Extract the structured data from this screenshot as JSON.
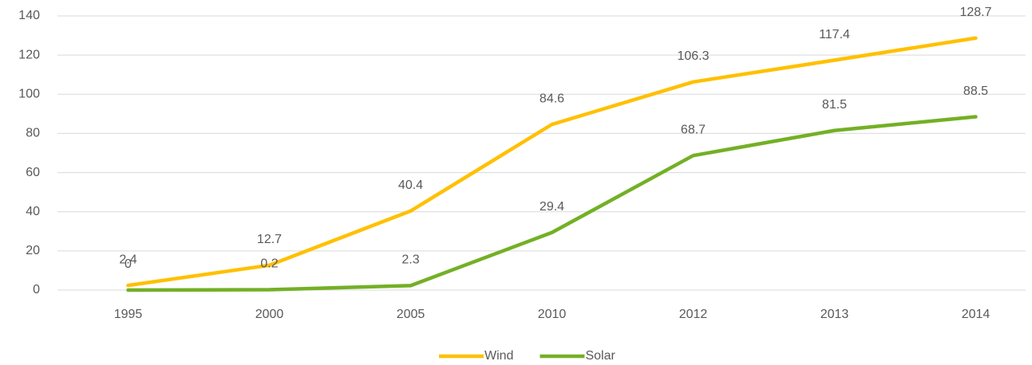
{
  "chart_data": {
    "type": "line",
    "categories": [
      "1995",
      "2000",
      "2005",
      "2010",
      "2012",
      "2013",
      "2014"
    ],
    "series": [
      {
        "name": "Wind",
        "color": "#ffc000",
        "values": [
          2.4,
          12.7,
          40.4,
          84.6,
          106.3,
          117.4,
          128.7
        ]
      },
      {
        "name": "Solar",
        "color": "#73b025",
        "values": [
          0,
          0.2,
          2.3,
          29.4,
          68.7,
          81.5,
          88.5
        ]
      }
    ],
    "ylim": [
      0,
      140
    ],
    "yticks": [
      0,
      20,
      40,
      60,
      80,
      100,
      120,
      140
    ],
    "grid": true,
    "legend": "bottom"
  }
}
